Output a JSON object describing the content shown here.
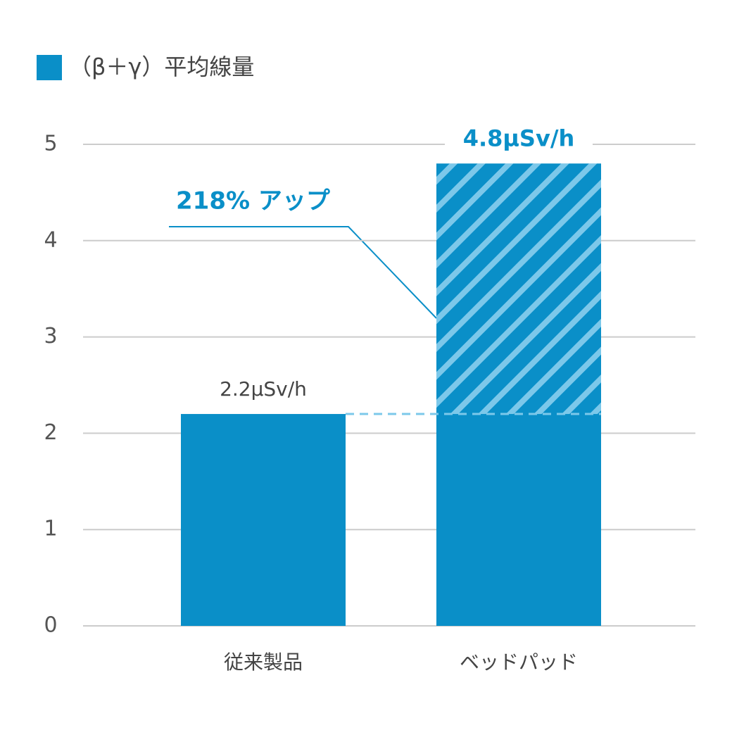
{
  "chart_data": {
    "type": "bar",
    "series": [
      {
        "name": "（β＋γ）平均線量",
        "color": "#0a8fc8",
        "values": [
          2.2,
          4.8
        ],
        "value_labels": [
          "2.2μSv/h",
          "4.8μSv/h"
        ]
      }
    ],
    "categories": [
      "従来製品",
      "ベッドパッド"
    ],
    "annotation": "218% アップ",
    "ylim": [
      0,
      5
    ],
    "yticks": [
      0,
      1,
      2,
      3,
      4,
      5
    ],
    "grid": true
  }
}
